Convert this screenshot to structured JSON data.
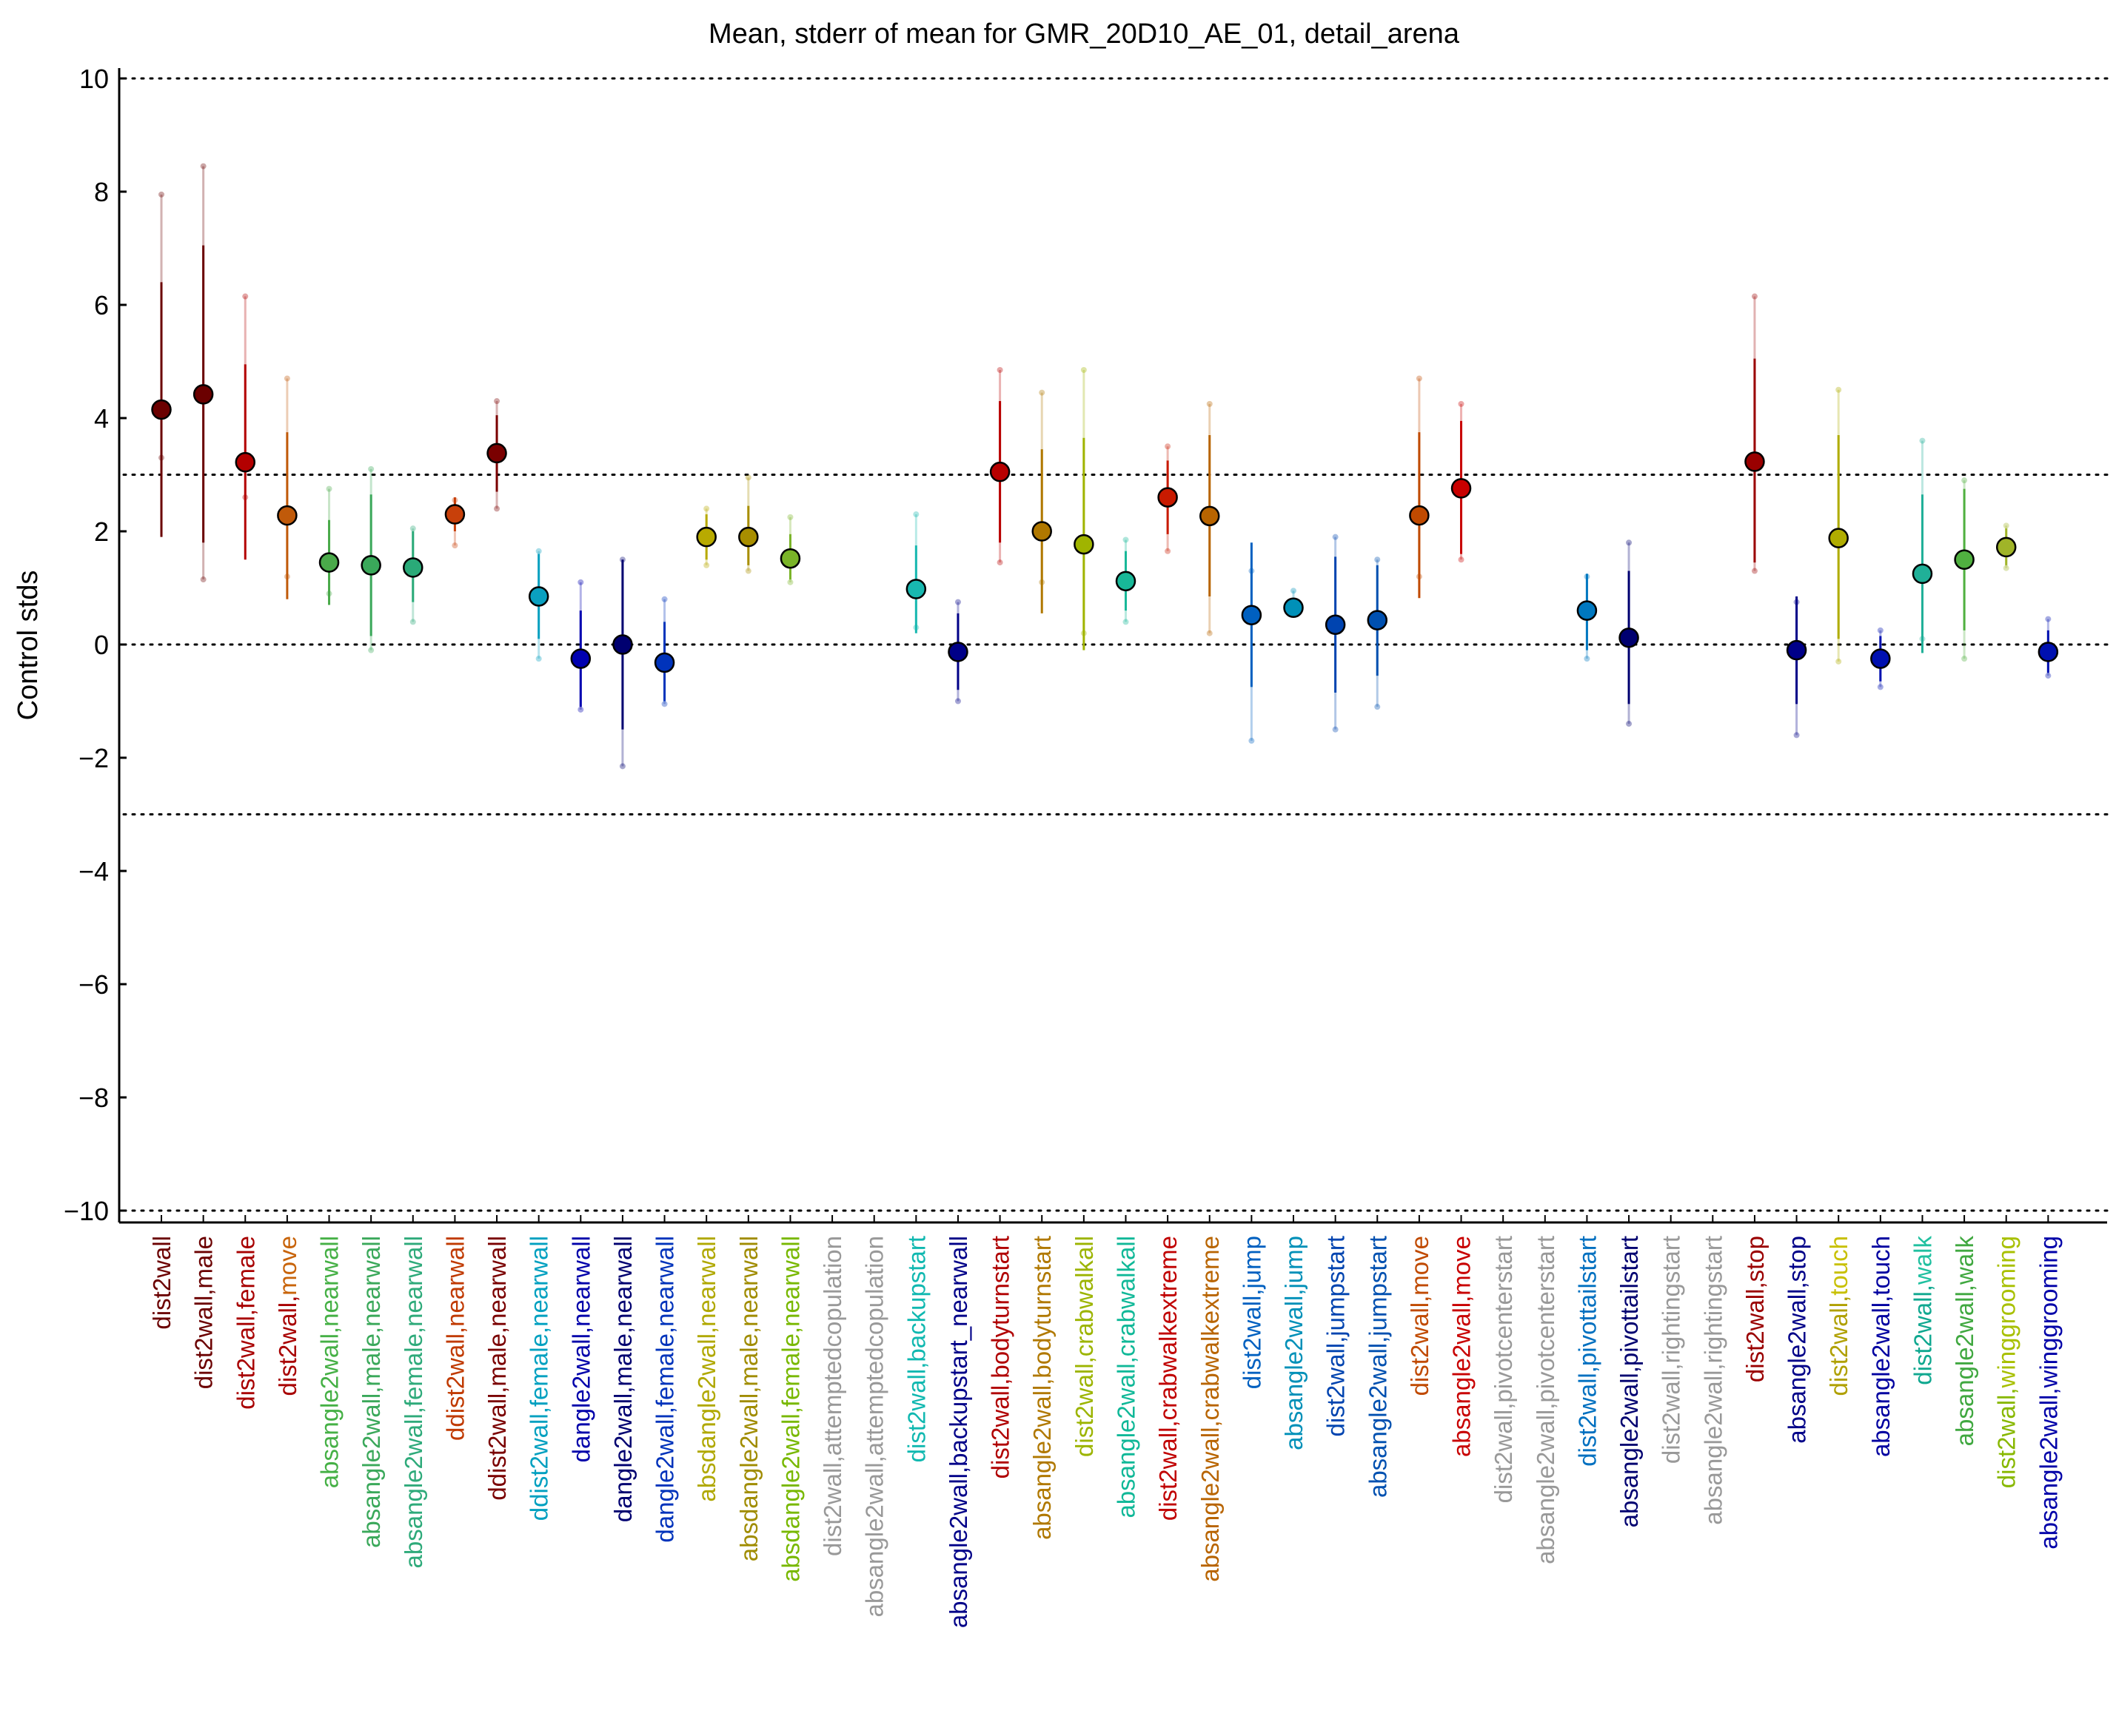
{
  "chart_data": {
    "type": "scatter",
    "title": "Mean, stderr of mean for GMR_20D10_AE_01, detail_arena",
    "ylabel": "Control stds",
    "xlabel": "",
    "ylim": [
      -10,
      10
    ],
    "yticks": [
      {
        "value": 10,
        "label": "10"
      },
      {
        "value": 8,
        "label": "8"
      },
      {
        "value": 6,
        "label": "6"
      },
      {
        "value": 4,
        "label": "4"
      },
      {
        "value": 2,
        "label": "2"
      },
      {
        "value": 0,
        "label": "0"
      },
      {
        "value": -2,
        "label": "−2"
      },
      {
        "value": -4,
        "label": "−4"
      },
      {
        "value": -6,
        "label": "−6"
      },
      {
        "value": -8,
        "label": "−8"
      },
      {
        "value": -10,
        "label": "−10"
      }
    ],
    "reference_lines": [
      10,
      3,
      0,
      -3,
      -10
    ],
    "series": [
      {
        "parts": [
          {
            "t": "dist2wall",
            "c": "#6b0000"
          }
        ],
        "mean": 4.15,
        "se_low": 1.9,
        "se_high": 6.4,
        "p_low": 3.3,
        "p_high": 7.95,
        "color": "#6b0000"
      },
      {
        "parts": [
          {
            "t": "dist2wall,male",
            "c": "#6b0000"
          }
        ],
        "mean": 4.42,
        "se_low": 1.8,
        "se_high": 7.05,
        "p_low": 1.15,
        "p_high": 8.45,
        "color": "#6b0000"
      },
      {
        "parts": [
          {
            "t": "dist2wall,female",
            "c": "#a80000"
          }
        ],
        "mean": 3.22,
        "se_low": 1.5,
        "se_high": 4.95,
        "p_low": 2.6,
        "p_high": 6.15,
        "color": "#b30000"
      },
      {
        "parts": [
          {
            "t": "dist2wall,",
            "c": "#a80000"
          },
          {
            "t": "move",
            "c": "#c8640a"
          }
        ],
        "mean": 2.28,
        "se_low": 0.8,
        "se_high": 3.75,
        "p_low": 1.2,
        "p_high": 4.7,
        "color": "#c05a0a"
      },
      {
        "parts": [
          {
            "t": "absangle2wall,nearwall",
            "c": "#45b045"
          }
        ],
        "mean": 1.45,
        "se_low": 0.7,
        "se_high": 2.2,
        "p_low": 0.9,
        "p_high": 2.75,
        "color": "#4aaa4a"
      },
      {
        "parts": [
          {
            "t": "absangle2wall,male,nearwall",
            "c": "#3aa85a"
          }
        ],
        "mean": 1.4,
        "se_low": 0.15,
        "se_high": 2.65,
        "p_low": -0.1,
        "p_high": 3.1,
        "color": "#3aa85a"
      },
      {
        "parts": [
          {
            "t": "absangle2wall,female,nearwall",
            "c": "#2eaa7a"
          }
        ],
        "mean": 1.36,
        "se_low": 0.75,
        "se_high": 2.0,
        "p_low": 0.4,
        "p_high": 2.05,
        "color": "#2aaa78"
      },
      {
        "parts": [
          {
            "t": "ddist2wall,nearwall",
            "c": "#c03a00"
          }
        ],
        "mean": 2.3,
        "se_low": 2.0,
        "se_high": 2.6,
        "p_low": 1.75,
        "p_high": 2.55,
        "color": "#c8400a"
      },
      {
        "parts": [
          {
            "t": "ddist2wall,male,nearwall",
            "c": "#7a0000"
          }
        ],
        "mean": 3.38,
        "se_low": 2.7,
        "se_high": 4.05,
        "p_low": 2.4,
        "p_high": 4.3,
        "color": "#7a0000"
      },
      {
        "parts": [
          {
            "t": "ddist2wall,female,nearwall",
            "c": "#00a0c0"
          }
        ],
        "mean": 0.85,
        "se_low": 0.1,
        "se_high": 1.6,
        "p_low": -0.25,
        "p_high": 1.65,
        "color": "#0aa0c0"
      },
      {
        "parts": [
          {
            "t": "dangle2wall,nearwall",
            "c": "#0000aa"
          }
        ],
        "mean": -0.25,
        "se_low": -1.1,
        "se_high": 0.6,
        "p_low": -1.15,
        "p_high": 1.1,
        "color": "#0000b0"
      },
      {
        "parts": [
          {
            "t": "dangle2wall,male,nearwall",
            "c": "#000070"
          }
        ],
        "mean": 0.0,
        "se_low": -1.5,
        "se_high": 1.5,
        "p_low": -2.15,
        "p_high": 1.5,
        "color": "#000070"
      },
      {
        "parts": [
          {
            "t": "dangle2wall,female,nearwall",
            "c": "#0033bb"
          }
        ],
        "mean": -0.32,
        "se_low": -1.0,
        "se_high": 0.4,
        "p_low": -1.05,
        "p_high": 0.8,
        "color": "#0033bb"
      },
      {
        "parts": [
          {
            "t": "absdangle2wall,nearwall",
            "c": "#b0a800"
          }
        ],
        "mean": 1.9,
        "se_low": 1.5,
        "se_high": 2.3,
        "p_low": 1.4,
        "p_high": 2.4,
        "color": "#b8aa00"
      },
      {
        "parts": [
          {
            "t": "absdangle2wall,male,nearwall",
            "c": "#a08c00"
          }
        ],
        "mean": 1.9,
        "se_low": 1.4,
        "se_high": 2.45,
        "p_low": 1.3,
        "p_high": 2.95,
        "color": "#a88e00"
      },
      {
        "parts": [
          {
            "t": "absdangle2wall,female,nearwall",
            "c": "#78b800"
          }
        ],
        "mean": 1.52,
        "se_low": 1.15,
        "se_high": 1.95,
        "p_low": 1.1,
        "p_high": 2.25,
        "color": "#7ab428"
      },
      {
        "parts": [
          {
            "t": "dist2wall,attemptedcopulation",
            "c": "#999999"
          }
        ],
        "mean": null,
        "color": "#999999"
      },
      {
        "parts": [
          {
            "t": "absangle2wall,attemptedcopulation",
            "c": "#999999"
          }
        ],
        "mean": null,
        "color": "#999999"
      },
      {
        "parts": [
          {
            "t": "dist2wall,backupstart",
            "c": "#10b8b0"
          }
        ],
        "mean": 0.98,
        "se_low": 0.2,
        "se_high": 1.75,
        "p_low": 0.3,
        "p_high": 2.3,
        "color": "#18b8b0"
      },
      {
        "parts": [
          {
            "t": "absangle2wall,backupstart_nearwall",
            "c": "#000088"
          }
        ],
        "mean": -0.13,
        "se_low": -0.8,
        "se_high": 0.55,
        "p_low": -1.0,
        "p_high": 0.75,
        "color": "#000088"
      },
      {
        "parts": [
          {
            "t": "dist2wall,bodyturnstart",
            "c": "#b00000"
          }
        ],
        "mean": 3.05,
        "se_low": 1.8,
        "se_high": 4.3,
        "p_low": 1.45,
        "p_high": 4.85,
        "color": "#b80000"
      },
      {
        "parts": [
          {
            "t": "absangle2wall,bodyturnstart",
            "c": "#b07800"
          }
        ],
        "mean": 2.0,
        "se_low": 0.55,
        "se_high": 3.45,
        "p_low": 1.1,
        "p_high": 4.45,
        "color": "#b07800"
      },
      {
        "parts": [
          {
            "t": "dist2wall,crabwalkall",
            "c": "#9cb400"
          }
        ],
        "mean": 1.77,
        "se_low": -0.1,
        "se_high": 3.65,
        "p_low": 0.2,
        "p_high": 4.85,
        "color": "#a0b400"
      },
      {
        "parts": [
          {
            "t": "absangle2wall,crabwalkall",
            "c": "#10b898"
          }
        ],
        "mean": 1.12,
        "se_low": 0.6,
        "se_high": 1.65,
        "p_low": 0.4,
        "p_high": 1.85,
        "color": "#18b898"
      },
      {
        "parts": [
          {
            "t": "dist2wall,crabwalkextreme",
            "c": "#c00000"
          }
        ],
        "mean": 2.6,
        "se_low": 1.95,
        "se_high": 3.25,
        "p_low": 1.65,
        "p_high": 3.5,
        "color": "#c81a00"
      },
      {
        "parts": [
          {
            "t": "absangle2wall,crabwalkextreme",
            "c": "#b86400"
          }
        ],
        "mean": 2.27,
        "se_low": 0.85,
        "se_high": 3.7,
        "p_low": 0.2,
        "p_high": 4.25,
        "color": "#b86400"
      },
      {
        "parts": [
          {
            "t": "dist2wall,jump",
            "c": "#0060c0"
          }
        ],
        "mean": 0.52,
        "se_low": -0.75,
        "se_high": 1.8,
        "p_low": -1.7,
        "p_high": 1.3,
        "color": "#0060c0"
      },
      {
        "parts": [
          {
            "t": "absangle2wall,jump",
            "c": "#0090b8"
          }
        ],
        "mean": 0.65,
        "se_low": 0.55,
        "se_high": 0.8,
        "p_low": 0.55,
        "p_high": 0.95,
        "color": "#0090b8"
      },
      {
        "parts": [
          {
            "t": "dist2wall,jumpstart",
            "c": "#0044b0"
          }
        ],
        "mean": 0.35,
        "se_low": -0.85,
        "se_high": 1.55,
        "p_low": -1.5,
        "p_high": 1.9,
        "color": "#0044b0"
      },
      {
        "parts": [
          {
            "t": "absangle2wall,jumpstart",
            "c": "#0050b0"
          }
        ],
        "mean": 0.43,
        "se_low": -0.55,
        "se_high": 1.4,
        "p_low": -1.1,
        "p_high": 1.5,
        "color": "#0050b0"
      },
      {
        "parts": [
          {
            "t": "dist2wall,move",
            "c": "#c04a00"
          }
        ],
        "mean": 2.28,
        "se_low": 0.82,
        "se_high": 3.75,
        "p_low": 1.2,
        "p_high": 4.7,
        "color": "#c04a00"
      },
      {
        "parts": [
          {
            "t": "absangle2wall,move",
            "c": "#c80000"
          }
        ],
        "mean": 2.76,
        "se_low": 1.6,
        "se_high": 3.95,
        "p_low": 1.5,
        "p_high": 4.25,
        "color": "#c80000"
      },
      {
        "parts": [
          {
            "t": "dist2wall,pivotcenterstart",
            "c": "#999999"
          }
        ],
        "mean": null,
        "color": "#999999"
      },
      {
        "parts": [
          {
            "t": "absangle2wall,pivotcenterstart",
            "c": "#999999"
          }
        ],
        "mean": null,
        "color": "#999999"
      },
      {
        "parts": [
          {
            "t": "dist2wall,pivottailstart",
            "c": "#0070c0"
          }
        ],
        "mean": 0.6,
        "se_low": -0.1,
        "se_high": 1.25,
        "p_low": -0.25,
        "p_high": 1.2,
        "color": "#0078c0"
      },
      {
        "parts": [
          {
            "t": "absangle2wall,pivottailstart",
            "c": "#000070"
          }
        ],
        "mean": 0.12,
        "se_low": -1.05,
        "se_high": 1.3,
        "p_low": -1.4,
        "p_high": 1.8,
        "color": "#000070"
      },
      {
        "parts": [
          {
            "t": "dist2wall,rightingstart",
            "c": "#999999"
          }
        ],
        "mean": null,
        "color": "#999999"
      },
      {
        "parts": [
          {
            "t": "absangle2wall,rightingstart",
            "c": "#999999"
          }
        ],
        "mean": null,
        "color": "#999999"
      },
      {
        "parts": [
          {
            "t": "dist2wall,stop",
            "c": "#9a0000"
          }
        ],
        "mean": 3.23,
        "se_low": 1.45,
        "se_high": 5.05,
        "p_low": 1.3,
        "p_high": 6.15,
        "color": "#9a0000"
      },
      {
        "parts": [
          {
            "t": "absangle2wall,stop",
            "c": "#000088"
          }
        ],
        "mean": -0.1,
        "se_low": -1.05,
        "se_high": 0.85,
        "p_low": -1.6,
        "p_high": 0.75,
        "color": "#000088"
      },
      {
        "parts": [
          {
            "t": "dist2wall,",
            "c": "#b0a000"
          },
          {
            "t": "touch",
            "c": "#c8c000"
          }
        ],
        "mean": 1.88,
        "se_low": 0.1,
        "se_high": 3.7,
        "p_low": -0.3,
        "p_high": 4.5,
        "color": "#b0ac00"
      },
      {
        "parts": [
          {
            "t": "absangle2wall,touch",
            "c": "#0000a0"
          }
        ],
        "mean": -0.25,
        "se_low": -0.65,
        "se_high": 0.15,
        "p_low": -0.75,
        "p_high": 0.25,
        "color": "#0010b0"
      },
      {
        "parts": [
          {
            "t": "dist2wall,",
            "c": "#10a890"
          },
          {
            "t": "walk",
            "c": "#20c0a0"
          }
        ],
        "mean": 1.25,
        "se_low": -0.15,
        "se_high": 2.65,
        "p_low": 0.1,
        "p_high": 3.6,
        "color": "#20b098"
      },
      {
        "parts": [
          {
            "t": "absangle2wall,walk",
            "c": "#40a840"
          }
        ],
        "mean": 1.5,
        "se_low": 0.25,
        "se_high": 2.75,
        "p_low": -0.25,
        "p_high": 2.9,
        "color": "#50b040"
      },
      {
        "parts": [
          {
            "t": "dist2wall,",
            "c": "#88b800"
          },
          {
            "t": "winggrooming",
            "c": "#a8c000"
          }
        ],
        "mean": 1.72,
        "se_low": 1.4,
        "se_high": 2.05,
        "p_low": 1.35,
        "p_high": 2.1,
        "color": "#a0b428"
      },
      {
        "parts": [
          {
            "t": "absangle2wall,winggrooming",
            "c": "#0000a8"
          }
        ],
        "mean": -0.13,
        "se_low": -0.5,
        "se_high": 0.25,
        "p_low": -0.55,
        "p_high": 0.45,
        "color": "#0010b0"
      }
    ]
  }
}
